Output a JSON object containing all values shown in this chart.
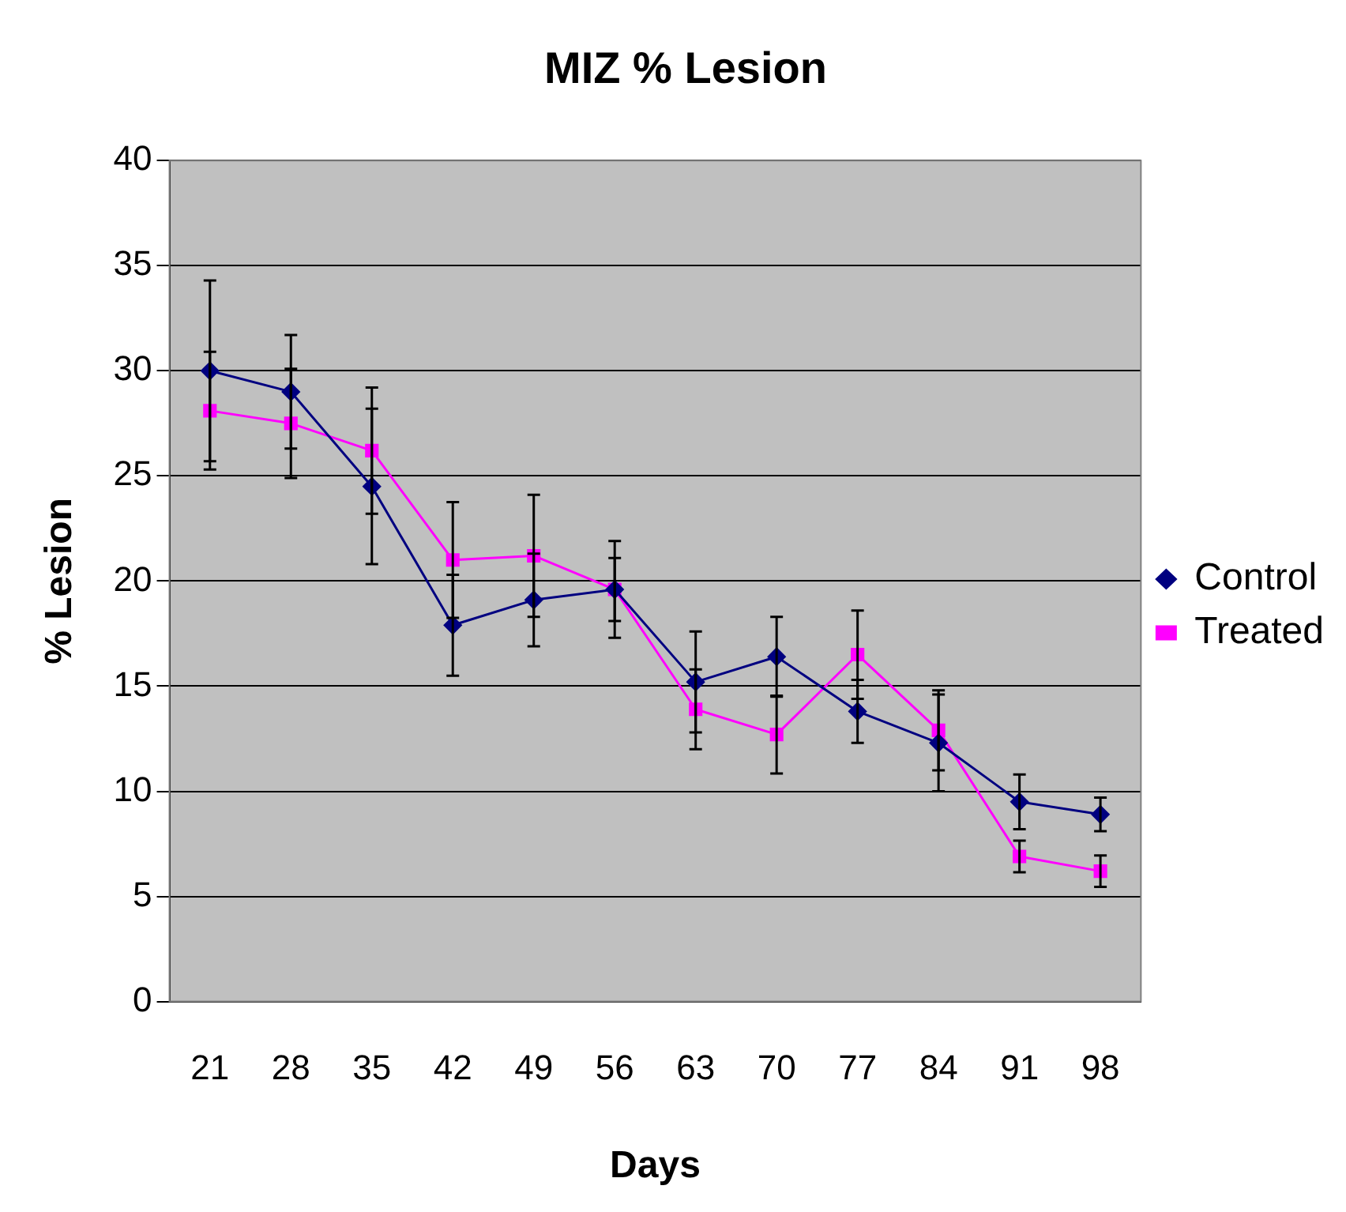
{
  "chart_data": {
    "type": "line",
    "title": "MIZ % Lesion",
    "xlabel": "Days",
    "ylabel": "% Lesion",
    "categories": [
      "21",
      "28",
      "35",
      "42",
      "49",
      "56",
      "63",
      "70",
      "77",
      "84",
      "91",
      "98"
    ],
    "series": [
      {
        "name": "Control",
        "color": "#000080",
        "marker": "diamond",
        "values": [
          30,
          29,
          24.5,
          17.9,
          19.1,
          19.6,
          15.2,
          16.4,
          13.8,
          12.3,
          9.5,
          8.9
        ],
        "errors": [
          4.3,
          2.7,
          3.7,
          2.4,
          2.2,
          1.5,
          2.4,
          1.9,
          1.5,
          2.3,
          1.3,
          0.8
        ]
      },
      {
        "name": "Treated",
        "color": "#ff00ff",
        "marker": "square",
        "values": [
          28.1,
          27.5,
          26.2,
          21.0,
          21.2,
          19.6,
          13.9,
          12.7,
          16.5,
          12.9,
          6.9,
          6.2
        ],
        "errors": [
          2.8,
          2.6,
          3.0,
          2.75,
          2.9,
          2.3,
          1.9,
          1.85,
          2.1,
          1.9,
          0.75,
          0.75
        ]
      }
    ],
    "ylim": [
      0,
      40
    ],
    "yticks": [
      0,
      5,
      10,
      15,
      20,
      25,
      30,
      35,
      40
    ],
    "grid": "y",
    "legend": "right",
    "line_style": "solid"
  }
}
